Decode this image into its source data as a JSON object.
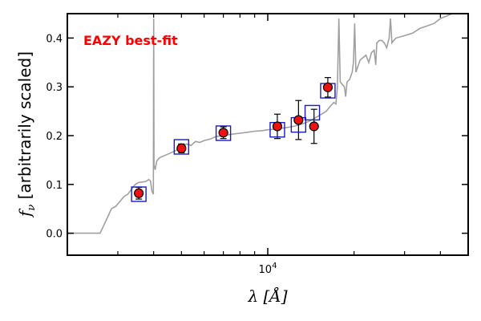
{
  "chart_data": {
    "type": "scatter",
    "title": "",
    "annotation": "EAZY best-fit",
    "annotation_color": "#ff0000",
    "xlabel_symbol": "λ",
    "xlabel_unit": "[Å]",
    "ylabel_symbol": "f",
    "ylabel_subscript": "ν",
    "ylabel_text": "[arbitrarily scaled]",
    "x_scale": "log",
    "xlim": [
      2000,
      50000
    ],
    "ylim": [
      -0.045,
      0.45
    ],
    "y_ticks": [
      0.0,
      0.1,
      0.2,
      0.3,
      0.4
    ],
    "y_tick_labels": [
      "0.0",
      "0.1",
      "0.2",
      "0.3",
      "0.4"
    ],
    "x_major_ticks": [
      10000
    ],
    "x_major_tick_labels": [
      "10^4"
    ],
    "x_minor_ticks": [
      3000,
      4000,
      5000,
      6000,
      7000,
      8000,
      9000,
      20000,
      30000,
      40000
    ],
    "grid": false,
    "colors": {
      "template": "#a0a0a0",
      "point_fill": "#ee1111",
      "point_edge": "#000000",
      "model_box": "#1a1acc",
      "axis": "#000000"
    },
    "template_spectrum": [
      [
        2000,
        0.0
      ],
      [
        2600,
        0.0
      ],
      [
        2700,
        0.02
      ],
      [
        2850,
        0.05
      ],
      [
        2950,
        0.055
      ],
      [
        3050,
        0.065
      ],
      [
        3150,
        0.075
      ],
      [
        3250,
        0.08
      ],
      [
        3350,
        0.09
      ],
      [
        3450,
        0.1
      ],
      [
        3550,
        0.104
      ],
      [
        3650,
        0.105
      ],
      [
        3750,
        0.106
      ],
      [
        3850,
        0.11
      ],
      [
        3900,
        0.107
      ],
      [
        3950,
        0.085
      ],
      [
        3990,
        0.08
      ],
      [
        4000,
        0.44
      ],
      [
        4010,
        0.14
      ],
      [
        4050,
        0.13
      ],
      [
        4100,
        0.148
      ],
      [
        4200,
        0.155
      ],
      [
        4400,
        0.16
      ],
      [
        4600,
        0.165
      ],
      [
        4800,
        0.17
      ],
      [
        5000,
        0.175
      ],
      [
        5200,
        0.183
      ],
      [
        5400,
        0.18
      ],
      [
        5600,
        0.188
      ],
      [
        5800,
        0.186
      ],
      [
        6000,
        0.19
      ],
      [
        6300,
        0.193
      ],
      [
        6600,
        0.198
      ],
      [
        7000,
        0.2
      ],
      [
        7500,
        0.203
      ],
      [
        8000,
        0.205
      ],
      [
        8500,
        0.207
      ],
      [
        9000,
        0.209
      ],
      [
        9500,
        0.21
      ],
      [
        10000,
        0.212
      ],
      [
        10500,
        0.213
      ],
      [
        11000,
        0.215
      ],
      [
        11500,
        0.216
      ],
      [
        12000,
        0.218
      ],
      [
        12500,
        0.22
      ],
      [
        13000,
        0.223
      ],
      [
        13500,
        0.226
      ],
      [
        14000,
        0.23
      ],
      [
        14500,
        0.235
      ],
      [
        15000,
        0.24
      ],
      [
        15500,
        0.245
      ],
      [
        16000,
        0.25
      ],
      [
        16500,
        0.26
      ],
      [
        17000,
        0.268
      ],
      [
        17300,
        0.265
      ],
      [
        17500,
        0.3
      ],
      [
        17700,
        0.44
      ],
      [
        17900,
        0.31
      ],
      [
        18200,
        0.305
      ],
      [
        18500,
        0.3
      ],
      [
        18700,
        0.28
      ],
      [
        18900,
        0.31
      ],
      [
        19300,
        0.315
      ],
      [
        19700,
        0.33
      ],
      [
        19900,
        0.35
      ],
      [
        20100,
        0.43
      ],
      [
        20300,
        0.33
      ],
      [
        21000,
        0.355
      ],
      [
        21500,
        0.36
      ],
      [
        22000,
        0.365
      ],
      [
        22500,
        0.35
      ],
      [
        23000,
        0.37
      ],
      [
        23500,
        0.375
      ],
      [
        23800,
        0.345
      ],
      [
        24000,
        0.39
      ],
      [
        24500,
        0.395
      ],
      [
        25000,
        0.395
      ],
      [
        25500,
        0.39
      ],
      [
        26000,
        0.38
      ],
      [
        26500,
        0.4
      ],
      [
        26800,
        0.44
      ],
      [
        27100,
        0.39
      ],
      [
        27500,
        0.395
      ],
      [
        28000,
        0.4
      ],
      [
        30000,
        0.405
      ],
      [
        32000,
        0.41
      ],
      [
        34000,
        0.42
      ],
      [
        36000,
        0.425
      ],
      [
        38000,
        0.43
      ],
      [
        40000,
        0.44
      ],
      [
        42000,
        0.445
      ],
      [
        44000,
        0.45
      ],
      [
        50000,
        0.46
      ]
    ],
    "observed": [
      {
        "x": 3550,
        "y": 0.082,
        "err": 0.012
      },
      {
        "x": 5000,
        "y": 0.174,
        "err": 0.009
      },
      {
        "x": 7000,
        "y": 0.206,
        "err": 0.012
      },
      {
        "x": 10800,
        "y": 0.219,
        "err": 0.025
      },
      {
        "x": 12800,
        "y": 0.232,
        "err": 0.04
      },
      {
        "x": 14500,
        "y": 0.219,
        "err": 0.035
      },
      {
        "x": 16200,
        "y": 0.299,
        "err": 0.02
      }
    ],
    "model_fluxes": [
      {
        "x": 3550,
        "y": 0.08
      },
      {
        "x": 5000,
        "y": 0.177
      },
      {
        "x": 7000,
        "y": 0.205
      },
      {
        "x": 10800,
        "y": 0.212
      },
      {
        "x": 12800,
        "y": 0.222
      },
      {
        "x": 14300,
        "y": 0.247
      },
      {
        "x": 16200,
        "y": 0.292
      }
    ]
  }
}
